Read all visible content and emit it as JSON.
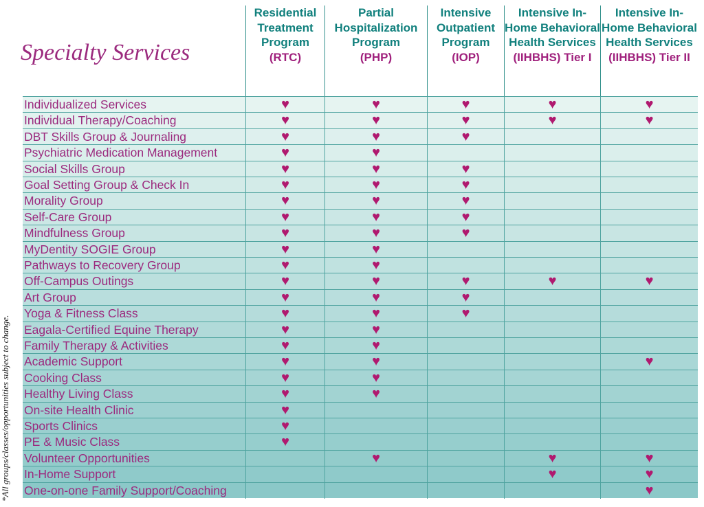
{
  "header": {
    "title": "Specialty Services",
    "note": "*All groups/classes/opportunities subject to change."
  },
  "table": {
    "columns": [
      {
        "name": "Residential Treatment Program",
        "abbr": "(RTC)"
      },
      {
        "name": "Partial Hospitalization Program",
        "abbr": "(PHP)"
      },
      {
        "name": "Intensive Outpatient Program",
        "abbr": "(IOP)"
      },
      {
        "name": "Intensive In-Home Behavioral Health Services",
        "abbr": "(IIHBHS) Tier I"
      },
      {
        "name": "Intensive In-Home Behavioral Health Services",
        "abbr": "(IIHBHS) Tier II"
      }
    ],
    "rows": [
      {
        "label": "Individualized Services",
        "cells": [
          "♥",
          "♥",
          "♥",
          "♥",
          "♥"
        ]
      },
      {
        "label": "Individual Therapy/Coaching",
        "cells": [
          "♥",
          "♥",
          "♥",
          "♥",
          "♥"
        ]
      },
      {
        "label": "DBT Skills Group & Journaling",
        "cells": [
          "♥",
          "♥",
          "♥",
          null,
          null
        ]
      },
      {
        "label": "Psychiatric Medication Management",
        "cells": [
          "♥",
          "♥",
          null,
          null,
          null
        ]
      },
      {
        "label": "Social Skills Group",
        "cells": [
          "♥",
          "♥",
          "♥",
          null,
          null
        ]
      },
      {
        "label": "Goal Setting Group & Check In",
        "cells": [
          "♥",
          "♥",
          "♥",
          null,
          null
        ]
      },
      {
        "label": "Morality Group",
        "cells": [
          "♥",
          "♥",
          "♥",
          null,
          null
        ]
      },
      {
        "label": "Self-Care Group",
        "cells": [
          "♥",
          "♥",
          "♥",
          null,
          null
        ]
      },
      {
        "label": "Mindfulness Group",
        "cells": [
          "♥",
          "♥",
          "♥",
          null,
          null
        ]
      },
      {
        "label": "MyDentity SOGIE Group",
        "cells": [
          "♥",
          "♥",
          null,
          null,
          null
        ]
      },
      {
        "label": "Pathways to Recovery Group",
        "cells": [
          "♥",
          "♥",
          null,
          null,
          null
        ]
      },
      {
        "label": "Off-Campus Outings",
        "cells": [
          "♥",
          "♥",
          "♥",
          "♥",
          "♥"
        ]
      },
      {
        "label": "Art Group",
        "cells": [
          "♥",
          "♥",
          "♥",
          null,
          null
        ]
      },
      {
        "label": "Yoga & Fitness Class",
        "cells": [
          "♥",
          "♥",
          "♥",
          null,
          null
        ]
      },
      {
        "label": "Eagala-Certified Equine Therapy",
        "cells": [
          "♥",
          "♥",
          null,
          null,
          null
        ]
      },
      {
        "label": "Family Therapy & Activities",
        "cells": [
          "♥",
          "♥",
          null,
          null,
          null
        ]
      },
      {
        "label": "Academic Support",
        "cells": [
          "♥",
          "♥",
          null,
          null,
          "♥"
        ]
      },
      {
        "label": "Cooking Class",
        "cells": [
          "♥",
          "♥",
          null,
          null,
          null
        ]
      },
      {
        "label": "Healthy Living Class",
        "cells": [
          "♥",
          "♥",
          null,
          null,
          null
        ]
      },
      {
        "label": "On-site Health Clinic",
        "cells": [
          "♥",
          null,
          null,
          null,
          null
        ]
      },
      {
        "label": "Sports Clinics",
        "cells": [
          "♥",
          null,
          null,
          null,
          null
        ]
      },
      {
        "label": "PE & Music Class",
        "cells": [
          "♥",
          null,
          null,
          null,
          null
        ]
      },
      {
        "label": "Volunteer Opportunities",
        "cells": [
          null,
          "♥",
          null,
          "♥",
          "♥"
        ]
      },
      {
        "label": "In-Home Support",
        "cells": [
          null,
          null,
          null,
          "♥",
          "♥"
        ]
      },
      {
        "label": "One-on-one Family Support/Coaching",
        "cells": [
          null,
          null,
          null,
          null,
          "♥"
        ]
      }
    ]
  }
}
